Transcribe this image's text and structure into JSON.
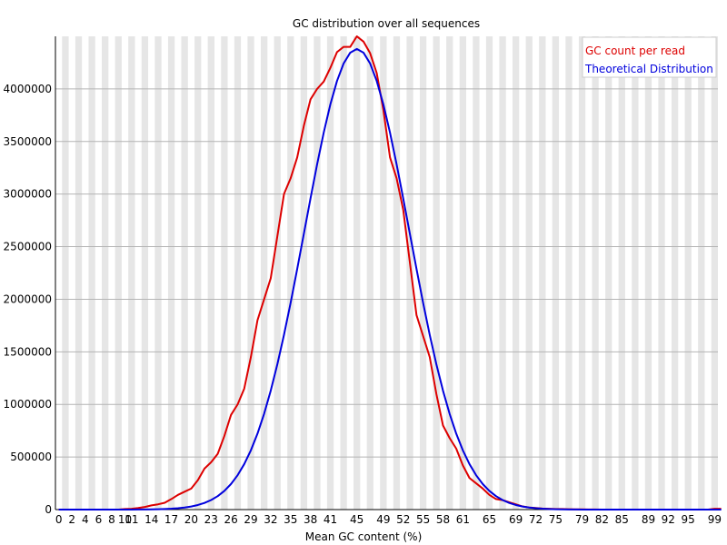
{
  "chart_data": {
    "type": "line",
    "title": "GC distribution over all sequences",
    "xlabel": "Mean GC content (%)",
    "ylabel": "",
    "xlim": [
      0,
      100
    ],
    "ylim": [
      0,
      4500000
    ],
    "grid": "horizontal lines with alternating vertical bands",
    "legend_position": "top-right",
    "x_ticks": [
      "0",
      "2",
      "4",
      "6",
      "8",
      "10",
      "11",
      "14",
      "17",
      "20",
      "23",
      "26",
      "29",
      "32",
      "35",
      "38",
      "41",
      "45",
      "49",
      "52",
      "55",
      "58",
      "61",
      "65",
      "69",
      "72",
      "75",
      "79",
      "82",
      "85",
      "89",
      "92",
      "95",
      "99"
    ],
    "y_ticks": [
      "0",
      "500000",
      "1000000",
      "1500000",
      "2000000",
      "2500000",
      "3000000",
      "3500000",
      "4000000"
    ],
    "series": [
      {
        "name": "GC count per read",
        "color": "#dd0000",
        "x": [
          0,
          1,
          2,
          3,
          4,
          5,
          6,
          7,
          8,
          9,
          10,
          11,
          12,
          13,
          14,
          15,
          16,
          17,
          18,
          19,
          20,
          21,
          22,
          23,
          24,
          25,
          26,
          27,
          28,
          29,
          30,
          31,
          32,
          33,
          34,
          35,
          36,
          37,
          38,
          39,
          40,
          41,
          42,
          43,
          44,
          45,
          46,
          47,
          48,
          49,
          50,
          51,
          52,
          53,
          54,
          55,
          56,
          57,
          58,
          59,
          60,
          61,
          62,
          63,
          64,
          65,
          66,
          67,
          68,
          69,
          70,
          71,
          72,
          73,
          74,
          75,
          76,
          77,
          78,
          79,
          80,
          81,
          82,
          83,
          84,
          85,
          86,
          87,
          88,
          89,
          90,
          91,
          92,
          93,
          94,
          95,
          96,
          97,
          98,
          99,
          100
        ],
        "y": [
          0,
          0,
          0,
          0,
          0,
          0,
          0,
          0,
          0,
          0,
          5000,
          8000,
          15000,
          25000,
          40000,
          50000,
          65000,
          100000,
          140000,
          170000,
          200000,
          280000,
          390000,
          450000,
          530000,
          700000,
          900000,
          1000000,
          1150000,
          1450000,
          1800000,
          2000000,
          2200000,
          2600000,
          3000000,
          3150000,
          3350000,
          3650000,
          3900000,
          4000000,
          4070000,
          4200000,
          4350000,
          4400000,
          4400000,
          4500000,
          4450000,
          4340000,
          4150000,
          3800000,
          3350000,
          3150000,
          2850000,
          2350000,
          1850000,
          1650000,
          1450000,
          1100000,
          800000,
          680000,
          580000,
          420000,
          300000,
          250000,
          200000,
          140000,
          100000,
          90000,
          70000,
          50000,
          30000,
          20000,
          15000,
          10000,
          8000,
          5000,
          5000,
          3000,
          2000,
          2000,
          1000,
          1000,
          0,
          0,
          0,
          0,
          0,
          0,
          0,
          0,
          0,
          0,
          0,
          0,
          0,
          0,
          0,
          0,
          0,
          8000,
          8000
        ]
      },
      {
        "name": "Theoretical Distribution",
        "color": "#0000dd",
        "mean": 45,
        "sd": 7.9,
        "peak": 4380000,
        "x": [
          0,
          100
        ]
      }
    ]
  }
}
